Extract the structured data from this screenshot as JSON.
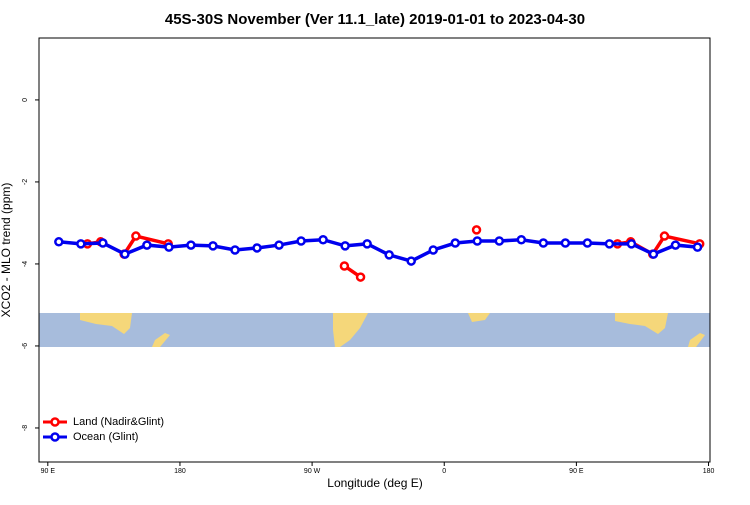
{
  "chart_data": {
    "type": "line",
    "title": "45S-30S November (Ver 11.1_late)   2019-01-01 to 2023-04-30",
    "x_label": "Longitude (deg E)",
    "y_label": "XCO2 - MLO trend (ppm)",
    "xlim": [
      84,
      541
    ],
    "ylim": [
      -8.83,
      1.51
    ],
    "xticks": [
      {
        "value": 90,
        "label": "90 E"
      },
      {
        "value": 180,
        "label": "180"
      },
      {
        "value": 270,
        "label": "90 W"
      },
      {
        "value": 360,
        "label": "0"
      },
      {
        "value": 450,
        "label": "90 E"
      },
      {
        "value": 540,
        "label": "180"
      }
    ],
    "yticks": [
      0,
      -2,
      -4,
      -6,
      -8
    ],
    "legend": "bottom-left",
    "series": [
      {
        "name": "Land (Nadir&Glint)",
        "color": "#ff0000",
        "x": [
          117,
          126,
          null,
          142,
          150,
          172,
          null,
          292,
          303,
          null,
          382,
          null,
          478,
          487,
          502,
          510,
          534
        ],
        "values": [
          -3.51,
          -3.46,
          null,
          -3.76,
          -3.32,
          -3.51,
          null,
          -4.05,
          -4.32,
          null,
          -3.17,
          null,
          -3.51,
          -3.46,
          -3.76,
          -3.32,
          -3.51
        ]
      },
      {
        "name": "Ocean (Glint)",
        "color": "#0000ee",
        "x": [
          97.5,
          112.5,
          127.5,
          142.5,
          157.5,
          172.5,
          187.5,
          202.5,
          217.5,
          232.5,
          247.5,
          262.5,
          277.5,
          292.5,
          307.5,
          322.5,
          337.5,
          352.5,
          367.5,
          382.5,
          397.5,
          412.5,
          427.5,
          442.5,
          457.5,
          472.5,
          487.5,
          502.5,
          517.5,
          532.5
        ],
        "values": [
          -3.46,
          -3.51,
          -3.49,
          -3.76,
          -3.54,
          -3.59,
          -3.54,
          -3.56,
          -3.66,
          -3.61,
          -3.54,
          -3.44,
          -3.41,
          -3.56,
          -3.51,
          -3.78,
          -3.93,
          -3.66,
          -3.49,
          -3.44,
          -3.44,
          -3.41,
          -3.49,
          -3.49,
          -3.49,
          -3.51,
          -3.51,
          -3.76,
          -3.54,
          -3.59
        ]
      }
    ]
  }
}
